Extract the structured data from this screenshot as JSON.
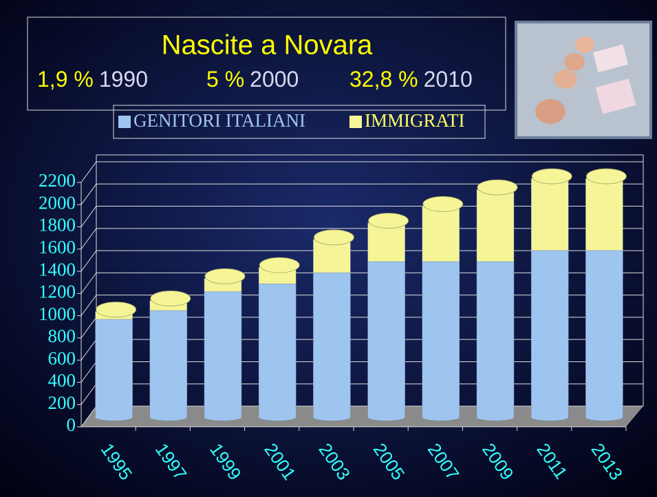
{
  "chart_data": {
    "type": "stacked-bar",
    "title": "Nascite  a  Novara",
    "annotations": [
      {
        "pct": "1,9 %",
        "year": "1990"
      },
      {
        "pct": "5 %",
        "year": "2000"
      },
      {
        "pct": "32,8 %",
        "year": "2010"
      }
    ],
    "categories": [
      "1995",
      "1997",
      "1999",
      "2001",
      "2003",
      "2005",
      "2007",
      "2009",
      "2011",
      "2013"
    ],
    "series": [
      {
        "name": "GENITORI  ITALIANI",
        "color": "#9ec5f0",
        "values": [
          880,
          960,
          1130,
          1200,
          1300,
          1400,
          1400,
          1400,
          1500,
          1500
        ]
      },
      {
        "name": "IMMIGRATI",
        "color": "#f5f598",
        "values": [
          70,
          90,
          120,
          150,
          300,
          350,
          500,
          650,
          650,
          650
        ]
      }
    ],
    "ylim": [
      0,
      2200
    ],
    "yticks": [
      0,
      200,
      400,
      600,
      800,
      1000,
      1200,
      1400,
      1600,
      1800,
      2000,
      2200
    ],
    "grid": true
  }
}
